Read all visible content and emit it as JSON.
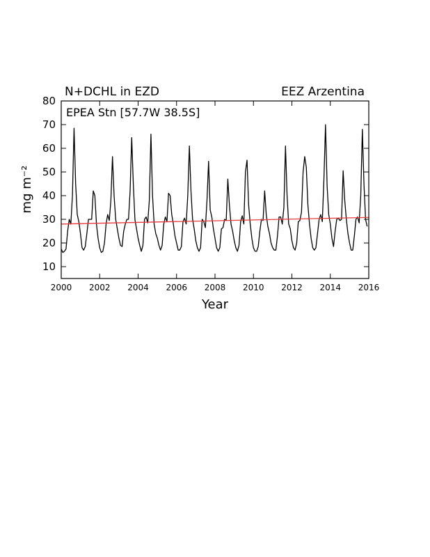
{
  "chart_data": {
    "type": "line",
    "title_left": "N+DCHL in EZD",
    "title_right": "EEZ  Arzentina",
    "annotation": "EPEA Stn [57.7W 38.5S]",
    "xlabel": "Year",
    "ylabel": "mg m⁻²",
    "xlim": [
      2000,
      2016
    ],
    "ylim": [
      5,
      80
    ],
    "x_ticks": [
      2000,
      2002,
      2004,
      2006,
      2008,
      2010,
      2012,
      2014,
      2016
    ],
    "x_tick_labels": [
      "2000",
      "2002",
      "2004",
      "2006",
      "2008",
      "2010",
      "2012",
      "2014",
      "2016"
    ],
    "y_ticks": [
      10,
      20,
      30,
      40,
      50,
      60,
      70,
      80
    ],
    "y_tick_labels": [
      "10",
      "20",
      "30",
      "40",
      "50",
      "60",
      "70",
      "80"
    ],
    "grid": false,
    "series": [
      {
        "color": "#000000",
        "start_year": 2000,
        "step": "monthly",
        "values": [
          17.5,
          16,
          16.5,
          17.5,
          25,
          30,
          28,
          40,
          68.5,
          45,
          32,
          29,
          24,
          18,
          17,
          18.5,
          24,
          30,
          30,
          30,
          42,
          40,
          28,
          22,
          18,
          16,
          16.5,
          20,
          28,
          32,
          29.5,
          38,
          56.5,
          40,
          30,
          26,
          22,
          19,
          18.5,
          25,
          28,
          30,
          30,
          42,
          64.5,
          45,
          30,
          26,
          22,
          19,
          16.5,
          19,
          30,
          31,
          28.5,
          38,
          66,
          40,
          28,
          24,
          22,
          19,
          17,
          19,
          28,
          31,
          29,
          41,
          40,
          32,
          28,
          23,
          20,
          17,
          17,
          18.5,
          29,
          30.5,
          28,
          40,
          61,
          42,
          30,
          26,
          21,
          18,
          16.5,
          18,
          30,
          29,
          26.5,
          38,
          54.5,
          34,
          31,
          26,
          22,
          18,
          16.5,
          18,
          26,
          26.5,
          30,
          29.5,
          47,
          36,
          28,
          25,
          21,
          18,
          16.5,
          19,
          29,
          31.5,
          28,
          50,
          55,
          36,
          28,
          22,
          18,
          16.5,
          16.5,
          18.5,
          25,
          30,
          29.5,
          42,
          32,
          27,
          24,
          20,
          18,
          17,
          17,
          23,
          31,
          31,
          28,
          35,
          61,
          40,
          28,
          26,
          21,
          18,
          17,
          20,
          29,
          29.5,
          33,
          50,
          56.5,
          52,
          36,
          28,
          22,
          18,
          17,
          18,
          24,
          30,
          32,
          29,
          47,
          70,
          44,
          32,
          28,
          22,
          18.5,
          25,
          30,
          30.5,
          29.5,
          30,
          50.5,
          38,
          30,
          24,
          20,
          17,
          17,
          23,
          30,
          31,
          28.5,
          40,
          68,
          45,
          30,
          27
        ]
      }
    ],
    "trend_line": {
      "color": "#e8383d",
      "x": [
        2000,
        2016
      ],
      "y": [
        28,
        30.8
      ]
    }
  }
}
